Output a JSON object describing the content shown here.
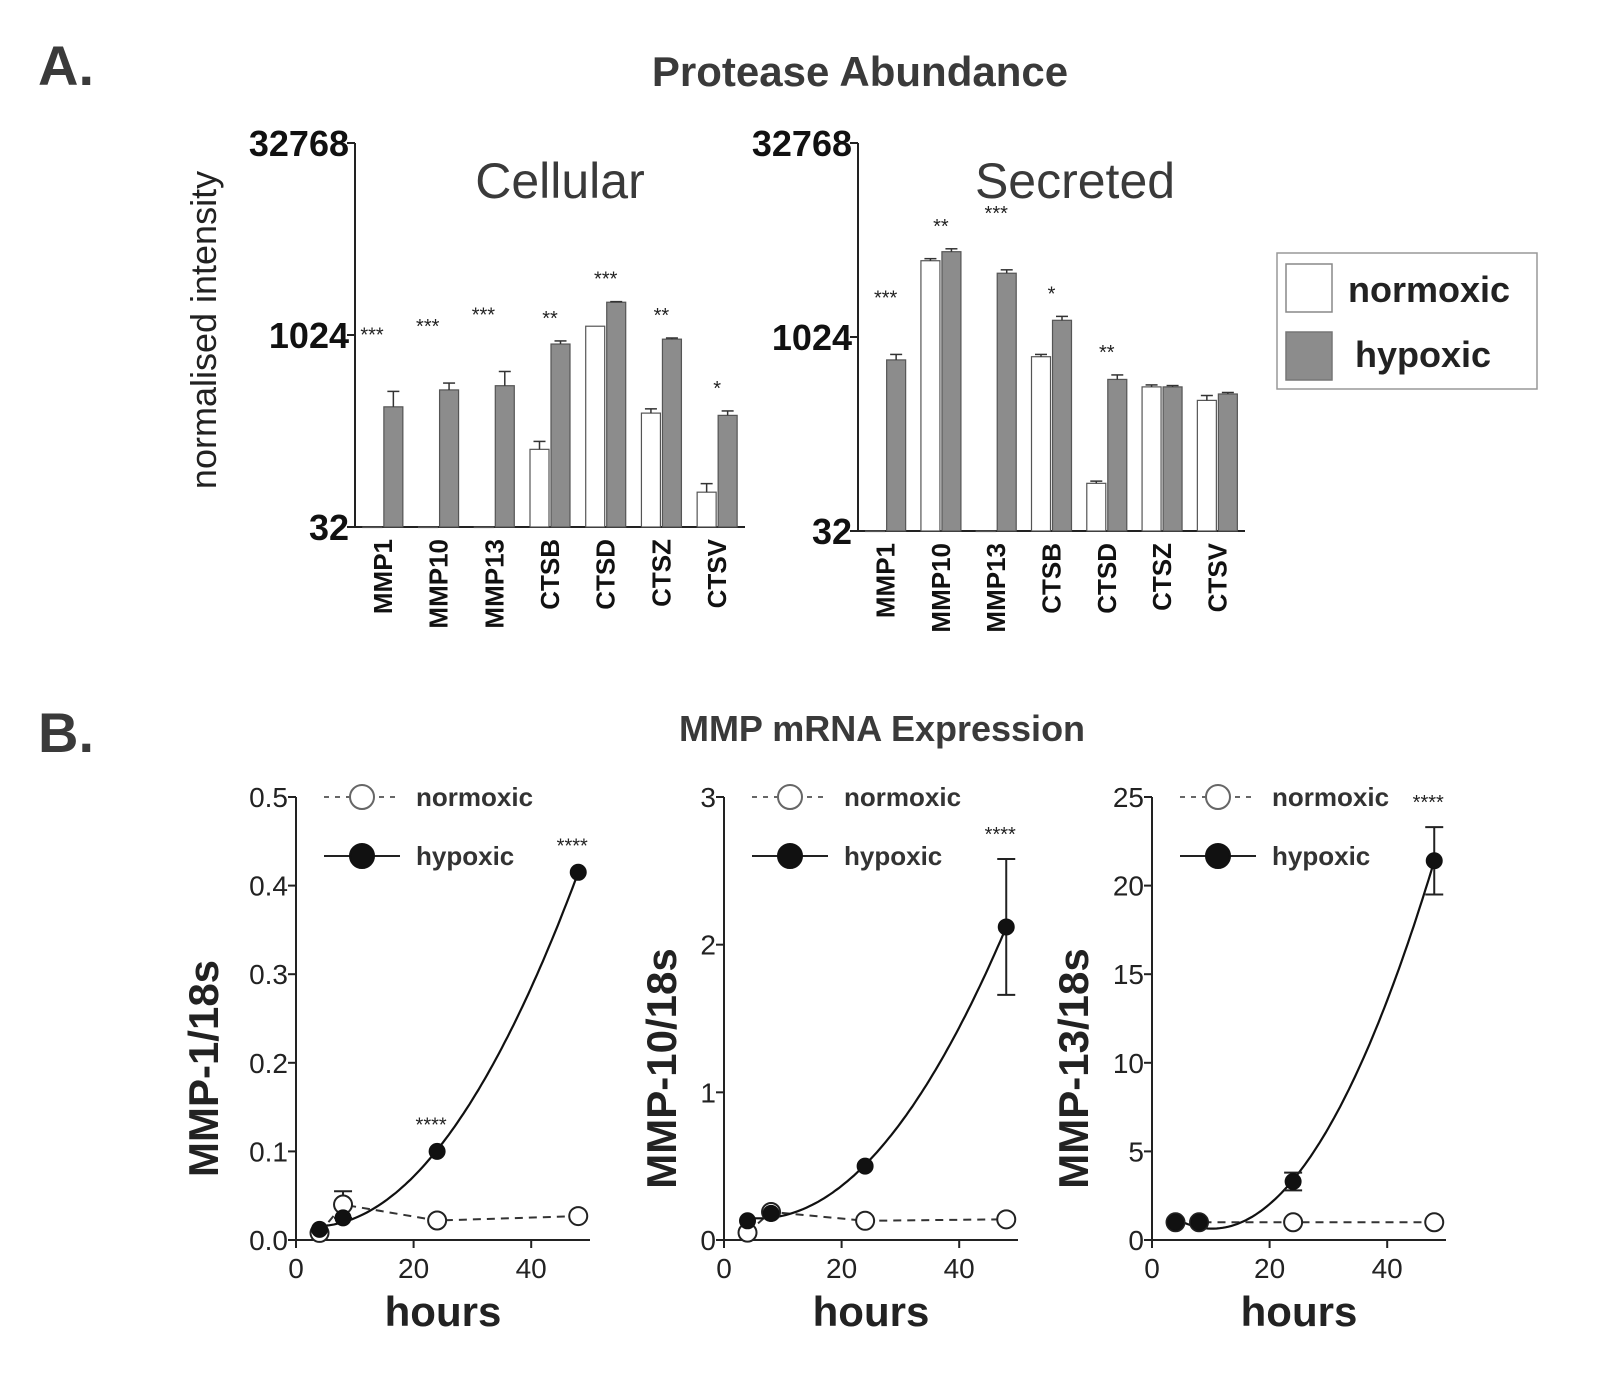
{
  "panels": {
    "a": {
      "label": "A.",
      "title": "Protease Abundance"
    },
    "b": {
      "label": "B.",
      "title": "MMP mRNA Expression"
    }
  },
  "legend_a": {
    "normoxic": "normoxic",
    "hypoxic": "hypoxic"
  },
  "colors": {
    "normoxic_fill": "#ffffff",
    "hypoxic_fill": "#8c8c8c",
    "line": "#222222"
  },
  "chart_data": [
    {
      "type": "bar",
      "title": "Cellular",
      "ylabel": "normalised intensity",
      "yscale": "log2",
      "ylim": [
        32,
        32768
      ],
      "yticks": [
        "32",
        "1024",
        "32768"
      ],
      "categories": [
        "MMP1",
        "MMP10",
        "MMP13",
        "CTSB",
        "CTSD",
        "CTSZ",
        "CTSV"
      ],
      "series": [
        {
          "name": "normoxic",
          "values": [
            32,
            32,
            32,
            130,
            1200,
            250,
            60
          ],
          "errors": [
            0,
            0,
            0,
            20,
            0,
            20,
            10
          ]
        },
        {
          "name": "hypoxic",
          "values": [
            280,
            380,
            410,
            870,
            1850,
            950,
            240
          ],
          "errors": [
            90,
            50,
            120,
            50,
            20,
            20,
            20
          ]
        }
      ],
      "significance": [
        "***",
        "***",
        "***",
        "**",
        "***",
        "**",
        "*"
      ]
    },
    {
      "type": "bar",
      "title": "Secreted",
      "ylabel": "normalised intensity",
      "yscale": "log2",
      "ylim": [
        32,
        32768
      ],
      "yticks": [
        "32",
        "1024",
        "32768"
      ],
      "categories": [
        "MMP1",
        "MMP10",
        "MMP13",
        "CTSB",
        "CTSD",
        "CTSZ",
        "CTSV"
      ],
      "series": [
        {
          "name": "normoxic",
          "values": [
            32,
            4000,
            32,
            720,
            75,
            420,
            330
          ],
          "errors": [
            0,
            150,
            0,
            30,
            3,
            15,
            30
          ]
        },
        {
          "name": "hypoxic",
          "values": [
            680,
            4700,
            3200,
            1380,
            480,
            420,
            370
          ],
          "errors": [
            70,
            250,
            200,
            100,
            40,
            10,
            10
          ]
        }
      ],
      "significance": [
        "***",
        "**",
        "***",
        "*",
        "**",
        "",
        ""
      ]
    },
    {
      "type": "line",
      "ylabel": "MMP-1/18s",
      "xlabel": "hours",
      "xlim": [
        0,
        50
      ],
      "ylim": [
        0,
        0.5
      ],
      "xticks": [
        "0",
        "20",
        "40"
      ],
      "yticks": [
        "0.0",
        "0.1",
        "0.2",
        "0.3",
        "0.4",
        "0.5"
      ],
      "legend": [
        "normoxic",
        "hypoxic"
      ],
      "series": [
        {
          "name": "normoxic",
          "x": [
            4,
            8,
            24,
            48
          ],
          "y": [
            0.008,
            0.04,
            0.022,
            0.027
          ],
          "errors": [
            0.002,
            0.015,
            0.003,
            0.003
          ]
        },
        {
          "name": "hypoxic",
          "x": [
            4,
            8,
            24,
            48
          ],
          "y": [
            0.012,
            0.025,
            0.1,
            0.415
          ],
          "errors": [
            0.002,
            0.005,
            0.004,
            0.005
          ]
        }
      ],
      "annotations": [
        {
          "x": 24,
          "text": "****"
        },
        {
          "x": 48,
          "text": "****"
        }
      ]
    },
    {
      "type": "line",
      "ylabel": "MMP-10/18s",
      "xlabel": "hours",
      "xlim": [
        0,
        50
      ],
      "ylim": [
        0,
        3
      ],
      "xticks": [
        "0",
        "20",
        "40"
      ],
      "yticks": [
        "0",
        "1",
        "2",
        "3"
      ],
      "legend": [
        "normoxic",
        "hypoxic"
      ],
      "series": [
        {
          "name": "normoxic",
          "x": [
            4,
            8,
            24,
            48
          ],
          "y": [
            0.05,
            0.19,
            0.13,
            0.14
          ],
          "errors": [
            0.01,
            0.03,
            0.02,
            0.02
          ]
        },
        {
          "name": "hypoxic",
          "x": [
            4,
            8,
            24,
            48
          ],
          "y": [
            0.13,
            0.18,
            0.5,
            2.12
          ],
          "errors": [
            0.02,
            0.03,
            0.03,
            0.46
          ]
        }
      ],
      "annotations": [
        {
          "x": 48,
          "text": "****"
        }
      ]
    },
    {
      "type": "line",
      "ylabel": "MMP-13/18s",
      "xlabel": "hours",
      "xlim": [
        0,
        50
      ],
      "ylim": [
        0,
        25
      ],
      "xticks": [
        "0",
        "20",
        "40"
      ],
      "yticks": [
        "0",
        "5",
        "10",
        "15",
        "20",
        "25"
      ],
      "legend": [
        "normoxic",
        "hypoxic"
      ],
      "series": [
        {
          "name": "normoxic",
          "x": [
            4,
            8,
            24,
            48
          ],
          "y": [
            1,
            1,
            1,
            1
          ],
          "errors": [
            0.1,
            0.1,
            0.1,
            0.1
          ]
        },
        {
          "name": "hypoxic",
          "x": [
            4,
            8,
            24,
            48
          ],
          "y": [
            1,
            1,
            3.3,
            21.4
          ],
          "errors": [
            0.1,
            0.1,
            0.5,
            1.9
          ]
        }
      ],
      "annotations": [
        {
          "x": 48,
          "text": "****"
        }
      ]
    }
  ]
}
